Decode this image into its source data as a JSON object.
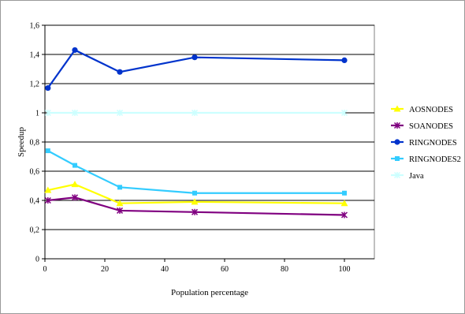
{
  "chart_data": {
    "type": "line",
    "xlabel": "Population percentage",
    "ylabel": "Speedup",
    "xlim": [
      0,
      110
    ],
    "ylim": [
      0,
      1.6
    ],
    "x_ticks": [
      "0",
      "20",
      "40",
      "60",
      "80",
      "100"
    ],
    "y_ticks": [
      "0",
      "0,2",
      "0,4",
      "0,6",
      "0,8",
      "1",
      "1,2",
      "1,4",
      "1,6"
    ],
    "x_tick_values": [
      0,
      20,
      40,
      60,
      80,
      100
    ],
    "y_tick_values": [
      0,
      0.2,
      0.4,
      0.6,
      0.8,
      1.0,
      1.2,
      1.4,
      1.6
    ],
    "grid": "horizontal",
    "legend_position": "right",
    "x": [
      1,
      10,
      25,
      50,
      100
    ],
    "series": [
      {
        "name": "AOSNODES",
        "color": "#ffff00",
        "marker": "triangle",
        "values": [
          0.47,
          0.51,
          0.38,
          0.39,
          0.38
        ]
      },
      {
        "name": "SOANODES",
        "color": "#800080",
        "marker": "star",
        "values": [
          0.4,
          0.42,
          0.33,
          0.32,
          0.3
        ]
      },
      {
        "name": "RINGNODES",
        "color": "#0033cc",
        "marker": "circle",
        "values": [
          1.17,
          1.43,
          1.28,
          1.38,
          1.36
        ]
      },
      {
        "name": "RINGNODES2",
        "color": "#33ccff",
        "marker": "square",
        "values": [
          0.74,
          0.64,
          0.49,
          0.45,
          0.45
        ]
      },
      {
        "name": "Java",
        "color": "#ccffff",
        "marker": "star",
        "values": [
          1.0,
          1.0,
          1.0,
          1.0,
          1.0
        ]
      }
    ]
  }
}
